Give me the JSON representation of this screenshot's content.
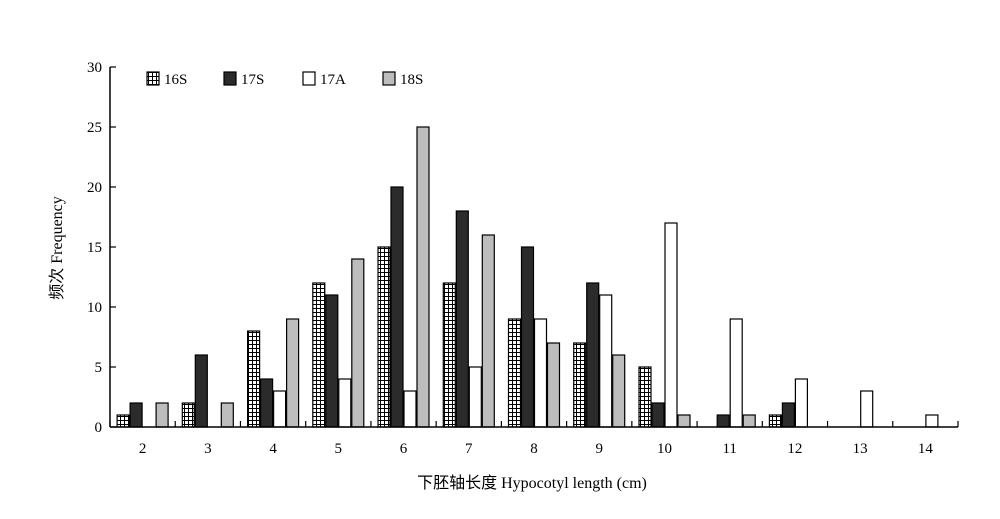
{
  "chart_data": {
    "type": "bar",
    "categories": [
      "2",
      "3",
      "4",
      "5",
      "6",
      "7",
      "8",
      "9",
      "10",
      "11",
      "12",
      "13",
      "14"
    ],
    "series": [
      {
        "name": "16S",
        "values": [
          1,
          2,
          8,
          12,
          15,
          12,
          9,
          7,
          5,
          0,
          1,
          0,
          0
        ],
        "style": "hatched"
      },
      {
        "name": "17S",
        "values": [
          2,
          6,
          4,
          11,
          20,
          18,
          15,
          12,
          2,
          1,
          2,
          0,
          0
        ],
        "color": "#2b2b2b"
      },
      {
        "name": "17A",
        "values": [
          0,
          0,
          3,
          4,
          3,
          5,
          9,
          11,
          17,
          9,
          4,
          3,
          1
        ],
        "color": "#ffffff"
      },
      {
        "name": "18S",
        "values": [
          2,
          2,
          9,
          14,
          25,
          16,
          7,
          6,
          1,
          1,
          0,
          0,
          0
        ],
        "color": "#bdbdbd"
      }
    ],
    "y_ticks": [
      "0",
      "5",
      "10",
      "15",
      "20",
      "25",
      "30"
    ],
    "ylim": [
      0,
      30
    ],
    "xlabel": "下胚轴长度  Hypocotyl length (cm)",
    "ylabel": "频次 Frequency",
    "legend_position": "top-left",
    "grid": false
  }
}
